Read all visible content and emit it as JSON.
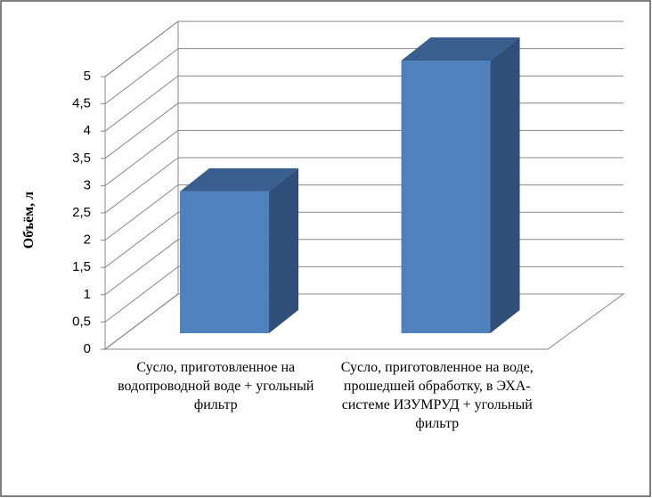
{
  "chart_data": {
    "type": "bar3d",
    "y_label": "Объём, л",
    "categories": [
      "Сусло, приготовленное на водопроводной воде + угольный фильтр",
      "Сусло, приготовленное на воде, прошедшей обработку, в ЭХА-системе ИЗУМРУД + угольный фильтр"
    ],
    "values": [
      2.6,
      5
    ],
    "color": "#4f81bd",
    "ylim": [
      0,
      5
    ],
    "yticks": [
      0,
      {
        "value": 0.5,
        "label": "0,5"
      },
      1,
      {
        "value": 1.5,
        "label": "1,5"
      },
      2,
      {
        "value": 2.5,
        "label": "2,5"
      },
      3,
      {
        "value": 3.5,
        "label": "3,5"
      },
      4,
      {
        "value": 4.5,
        "label": "4,5"
      },
      5
    ],
    "grid": true
  }
}
